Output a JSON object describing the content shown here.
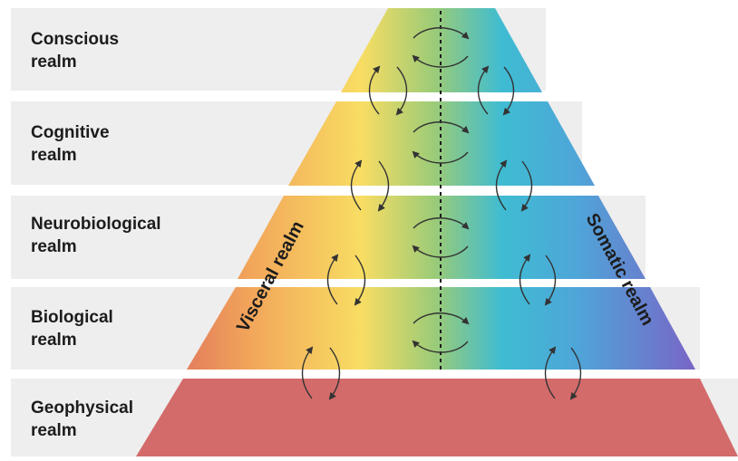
{
  "realms": [
    {
      "label": "Conscious\nrealm"
    },
    {
      "label": "Cognitive\nrealm"
    },
    {
      "label": "Neurobiological\nrealm"
    },
    {
      "label": "Biological\nrealm"
    },
    {
      "label": "Geophysical\nrealm"
    }
  ],
  "side_labels": {
    "left": "Visceral realm",
    "right": "Somatic realm"
  },
  "colors": {
    "band_background": "#eeeeee",
    "geophysical_fill": "#d36b6b",
    "spectrum": [
      "#d9615d",
      "#f2a65a",
      "#f8dd63",
      "#9acb78",
      "#3fbcd2",
      "#4ea6d8",
      "#7b62c6"
    ],
    "arrow": "#333333"
  },
  "icons": {
    "cycle": "circular-arrows-icon",
    "axis": "dashed-center-line"
  }
}
